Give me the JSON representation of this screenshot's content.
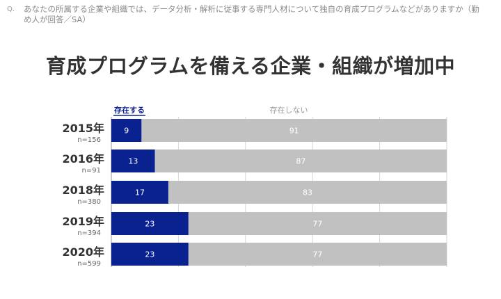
{
  "question": {
    "marker": "Q.",
    "text": "あなたの所属する企業や組織では、データ分析・解析に従事する専門人材について独自の育成プログラムなどがありますか（勤め人が回答／SA）"
  },
  "headline": "育成プログラムを備える企業・組織が増加中",
  "colors": {
    "exists": "#0a2290",
    "not_exists": "#c1c1c1",
    "grid": "#d6d6d6",
    "label_exists": "#0a2290",
    "label_not": "#9a9a9a"
  },
  "chart_data": {
    "type": "bar",
    "stacked": true,
    "orientation": "horizontal",
    "categories": [
      "2015年",
      "2016年",
      "2018年",
      "2019年",
      "2020年"
    ],
    "sample_sizes": [
      "n=156",
      "n=91",
      "n=380",
      "n=394",
      "n=599"
    ],
    "series": [
      {
        "name": "存在する",
        "values": [
          9,
          13,
          17,
          23,
          23
        ]
      },
      {
        "name": "存在しない",
        "values": [
          91,
          87,
          83,
          77,
          77
        ]
      }
    ],
    "xlim": [
      0,
      100
    ],
    "grid": true,
    "legend_position": "top"
  }
}
